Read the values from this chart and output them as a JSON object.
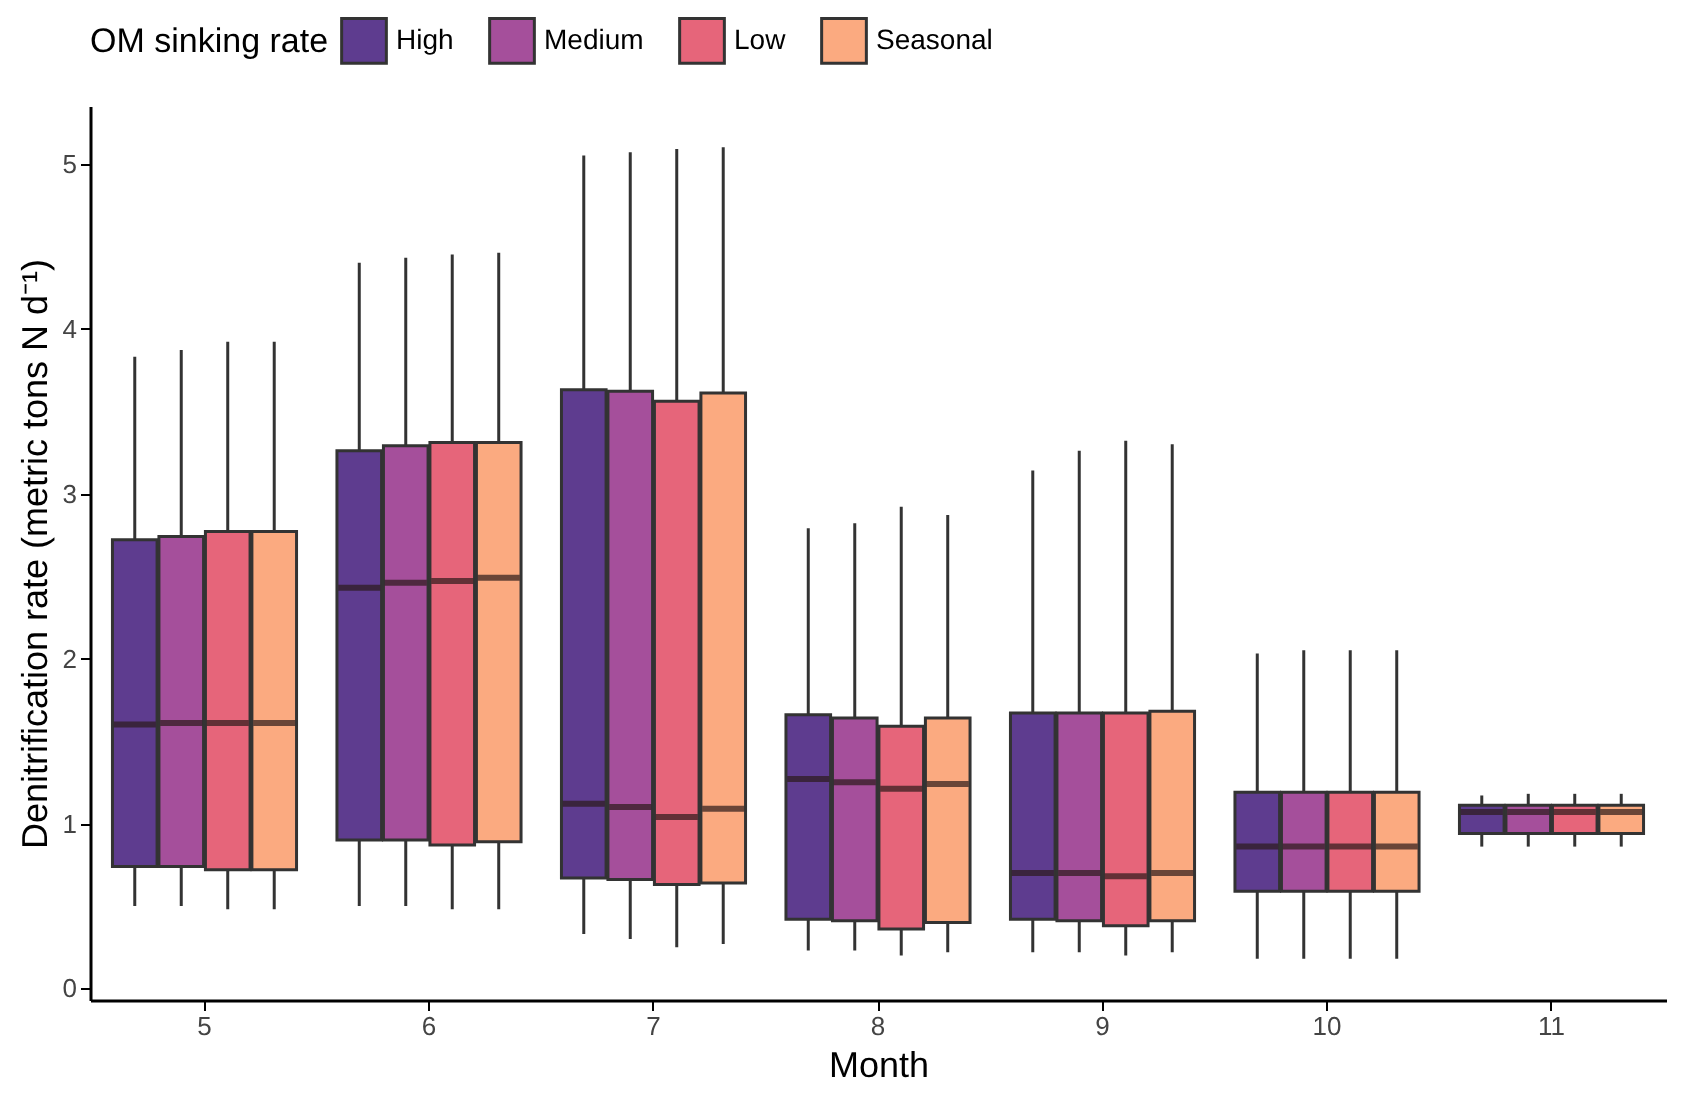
{
  "chart_data": {
    "type": "box",
    "xlabel": "Month",
    "ylabel": "Denitrification rate (metric tons N d⁻¹)",
    "legend_title": "OM sinking rate",
    "legend": "top",
    "categories": [
      "5",
      "6",
      "7",
      "8",
      "9",
      "10",
      "11"
    ],
    "ylim": [
      -0.07,
      5.35
    ],
    "yticks": [
      0,
      1,
      2,
      3,
      4,
      5
    ],
    "grid": false,
    "series": [
      {
        "name": "High",
        "color": "#5e3c8f",
        "boxes": [
          {
            "low": 0.5,
            "q1": 0.74,
            "median": 1.6,
            "q3": 2.72,
            "high": 3.83
          },
          {
            "low": 0.5,
            "q1": 0.9,
            "median": 2.43,
            "q3": 3.26,
            "high": 4.4
          },
          {
            "low": 0.33,
            "q1": 0.67,
            "median": 1.12,
            "q3": 3.63,
            "high": 5.05
          },
          {
            "low": 0.23,
            "q1": 0.42,
            "median": 1.27,
            "q3": 1.66,
            "high": 2.79
          },
          {
            "low": 0.22,
            "q1": 0.42,
            "median": 0.7,
            "q3": 1.67,
            "high": 3.14
          },
          {
            "low": 0.18,
            "q1": 0.59,
            "median": 0.86,
            "q3": 1.19,
            "high": 2.03
          },
          {
            "low": 0.86,
            "q1": 0.94,
            "median": 1.07,
            "q3": 1.11,
            "high": 1.17
          }
        ]
      },
      {
        "name": "Medium",
        "color": "#a54f9b",
        "boxes": [
          {
            "low": 0.5,
            "q1": 0.74,
            "median": 1.61,
            "q3": 2.74,
            "high": 3.87
          },
          {
            "low": 0.5,
            "q1": 0.9,
            "median": 2.46,
            "q3": 3.29,
            "high": 4.43
          },
          {
            "low": 0.3,
            "q1": 0.66,
            "median": 1.1,
            "q3": 3.62,
            "high": 5.07
          },
          {
            "low": 0.23,
            "q1": 0.41,
            "median": 1.25,
            "q3": 1.64,
            "high": 2.82
          },
          {
            "low": 0.22,
            "q1": 0.41,
            "median": 0.7,
            "q3": 1.67,
            "high": 3.26
          },
          {
            "low": 0.18,
            "q1": 0.59,
            "median": 0.86,
            "q3": 1.19,
            "high": 2.05
          },
          {
            "low": 0.86,
            "q1": 0.94,
            "median": 1.07,
            "q3": 1.11,
            "high": 1.18
          }
        ]
      },
      {
        "name": "Low",
        "color": "#e6657a",
        "boxes": [
          {
            "low": 0.48,
            "q1": 0.72,
            "median": 1.61,
            "q3": 2.77,
            "high": 3.92
          },
          {
            "low": 0.48,
            "q1": 0.87,
            "median": 2.47,
            "q3": 3.31,
            "high": 4.45
          },
          {
            "low": 0.25,
            "q1": 0.63,
            "median": 1.04,
            "q3": 3.56,
            "high": 5.09
          },
          {
            "low": 0.2,
            "q1": 0.36,
            "median": 1.21,
            "q3": 1.59,
            "high": 2.92
          },
          {
            "low": 0.2,
            "q1": 0.38,
            "median": 0.68,
            "q3": 1.67,
            "high": 3.32
          },
          {
            "low": 0.18,
            "q1": 0.59,
            "median": 0.86,
            "q3": 1.19,
            "high": 2.05
          },
          {
            "low": 0.86,
            "q1": 0.94,
            "median": 1.07,
            "q3": 1.11,
            "high": 1.18
          }
        ]
      },
      {
        "name": "Seasonal",
        "color": "#fbaa80",
        "boxes": [
          {
            "low": 0.48,
            "q1": 0.72,
            "median": 1.61,
            "q3": 2.77,
            "high": 3.92
          },
          {
            "low": 0.48,
            "q1": 0.89,
            "median": 2.49,
            "q3": 3.31,
            "high": 4.46
          },
          {
            "low": 0.27,
            "q1": 0.64,
            "median": 1.09,
            "q3": 3.61,
            "high": 5.1
          },
          {
            "low": 0.22,
            "q1": 0.4,
            "median": 1.24,
            "q3": 1.64,
            "high": 2.87
          },
          {
            "low": 0.22,
            "q1": 0.41,
            "median": 0.7,
            "q3": 1.68,
            "high": 3.3
          },
          {
            "low": 0.18,
            "q1": 0.59,
            "median": 0.86,
            "q3": 1.19,
            "high": 2.05
          },
          {
            "low": 0.86,
            "q1": 0.94,
            "median": 1.07,
            "q3": 1.11,
            "high": 1.18
          }
        ]
      }
    ]
  }
}
